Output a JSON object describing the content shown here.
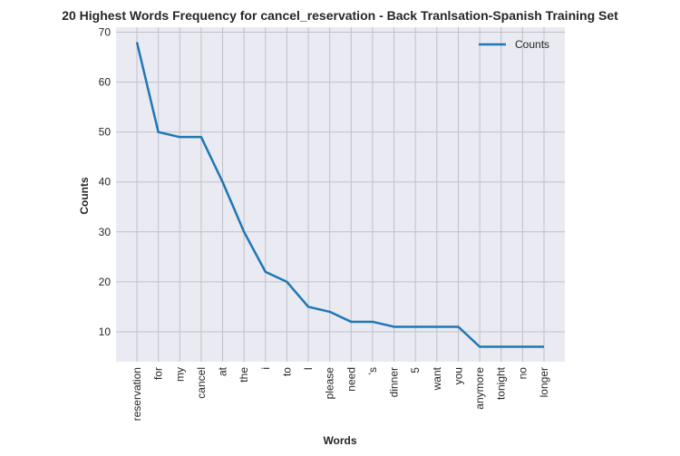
{
  "chart_data": {
    "type": "line",
    "title": "20 Highest Words Frequency for cancel_reservation - Back Tranlsation-Spanish Training Set",
    "xlabel": "Words",
    "ylabel": "Counts",
    "categories": [
      "reservation",
      "for",
      "my",
      "cancel",
      "at",
      "the",
      "i",
      "to",
      "I",
      "please",
      "need",
      "'s",
      "dinner",
      "5",
      "want",
      "you",
      "anymore",
      "tonight",
      "no",
      "longer"
    ],
    "series": [
      {
        "name": "Counts",
        "values": [
          68,
          50,
          49,
          49,
          40,
          30,
          22,
          20,
          15,
          14,
          12,
          12,
          11,
          11,
          11,
          11,
          7,
          7,
          7,
          7
        ],
        "color": "#1f77b4"
      }
    ],
    "yticks": [
      10,
      20,
      30,
      40,
      50,
      60,
      70
    ],
    "ylim": [
      4,
      71
    ],
    "grid": true,
    "legend_position": "top-right",
    "background_color": "#eaeaf2",
    "grid_color": "#c0c0c8"
  }
}
